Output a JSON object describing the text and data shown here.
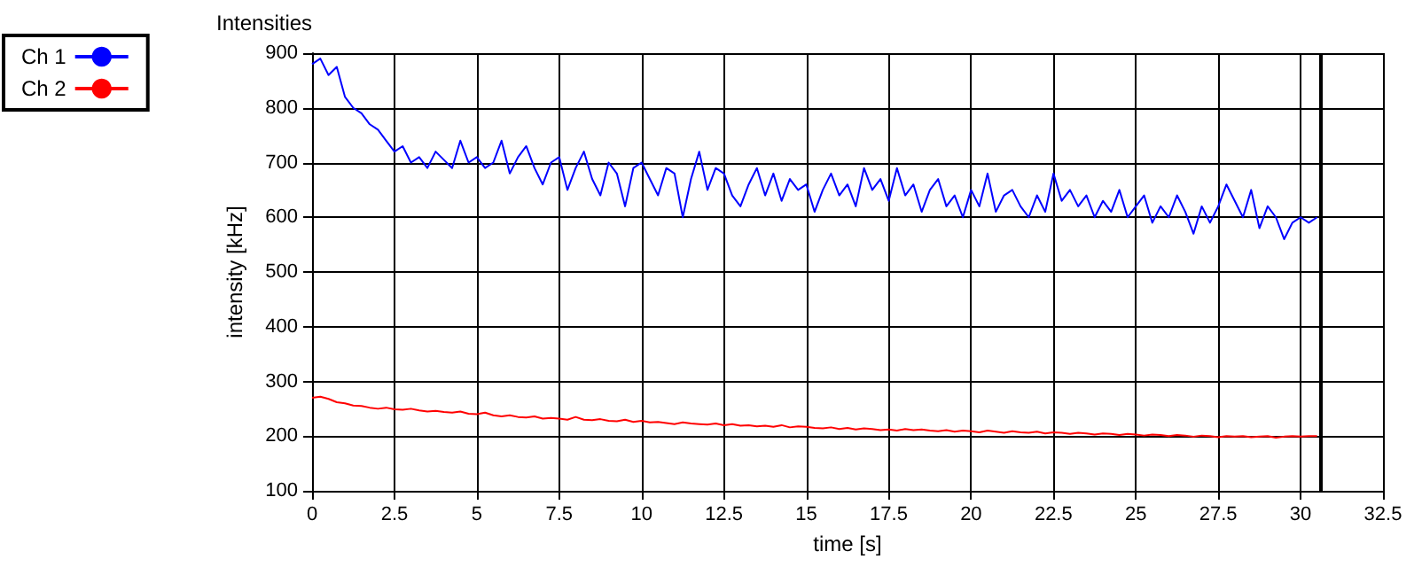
{
  "chart_data": {
    "type": "line",
    "title": "Intensities",
    "xlabel": "time [s]",
    "ylabel": "intensity [kHz]",
    "x": [
      0,
      0.25,
      0.5,
      0.75,
      1,
      1.25,
      1.5,
      1.75,
      2,
      2.25,
      2.5,
      2.75,
      3,
      3.25,
      3.5,
      3.75,
      4,
      4.25,
      4.5,
      4.75,
      5,
      5.25,
      5.5,
      5.75,
      6,
      6.25,
      6.5,
      6.75,
      7,
      7.25,
      7.5,
      7.75,
      8,
      8.25,
      8.5,
      8.75,
      9,
      9.25,
      9.5,
      9.75,
      10,
      10.25,
      10.5,
      10.75,
      11,
      11.25,
      11.5,
      11.75,
      12,
      12.25,
      12.5,
      12.75,
      13,
      13.25,
      13.5,
      13.75,
      14,
      14.25,
      14.5,
      14.75,
      15,
      15.25,
      15.5,
      15.75,
      16,
      16.25,
      16.5,
      16.75,
      17,
      17.25,
      17.5,
      17.75,
      18,
      18.25,
      18.5,
      18.75,
      19,
      19.25,
      19.5,
      19.75,
      20,
      20.25,
      20.5,
      20.75,
      21,
      21.25,
      21.5,
      21.75,
      22,
      22.25,
      22.5,
      22.75,
      23,
      23.25,
      23.5,
      23.75,
      24,
      24.25,
      24.5,
      24.75,
      25,
      25.25,
      25.5,
      25.75,
      26,
      26.25,
      26.5,
      26.75,
      27,
      27.25,
      27.5,
      27.75,
      28,
      28.25,
      28.5,
      28.75,
      29,
      29.25,
      29.5,
      29.75,
      30,
      30.25,
      30.5
    ],
    "series": [
      {
        "name": "Ch 1",
        "color": "#0000ff",
        "values": [
          880,
          890,
          860,
          875,
          820,
          800,
          790,
          770,
          760,
          740,
          720,
          730,
          700,
          710,
          690,
          720,
          705,
          690,
          740,
          700,
          710,
          690,
          700,
          740,
          680,
          710,
          730,
          690,
          660,
          700,
          710,
          650,
          690,
          720,
          670,
          640,
          700,
          680,
          620,
          690,
          700,
          670,
          640,
          690,
          680,
          600,
          670,
          720,
          650,
          690,
          680,
          640,
          620,
          660,
          690,
          640,
          680,
          630,
          670,
          650,
          660,
          610,
          650,
          680,
          640,
          660,
          620,
          690,
          650,
          670,
          630,
          690,
          640,
          660,
          610,
          650,
          670,
          620,
          640,
          600,
          650,
          620,
          680,
          610,
          640,
          650,
          620,
          600,
          640,
          610,
          680,
          630,
          650,
          620,
          640,
          600,
          630,
          610,
          650,
          600,
          620,
          640,
          590,
          620,
          600,
          640,
          610,
          570,
          620,
          590,
          620,
          660,
          630,
          600,
          650,
          580,
          620,
          600,
          560,
          590,
          600,
          590,
          600
        ]
      },
      {
        "name": "Ch 2",
        "color": "#ff0000",
        "values": [
          270,
          272,
          268,
          262,
          260,
          256,
          255,
          252,
          250,
          252,
          249,
          248,
          250,
          247,
          245,
          246,
          244,
          243,
          245,
          241,
          240,
          243,
          238,
          236,
          238,
          235,
          234,
          236,
          232,
          233,
          232,
          230,
          235,
          230,
          229,
          231,
          228,
          227,
          230,
          226,
          228,
          225,
          226,
          224,
          222,
          225,
          223,
          222,
          221,
          223,
          220,
          222,
          219,
          220,
          218,
          219,
          217,
          220,
          216,
          218,
          217,
          215,
          214,
          216,
          213,
          215,
          212,
          214,
          213,
          211,
          212,
          210,
          213,
          211,
          212,
          210,
          209,
          211,
          208,
          210,
          209,
          207,
          210,
          208,
          206,
          209,
          207,
          206,
          208,
          205,
          207,
          206,
          204,
          206,
          205,
          203,
          205,
          204,
          202,
          204,
          203,
          201,
          203,
          202,
          200,
          202,
          201,
          199,
          201,
          200,
          198,
          200,
          199,
          200,
          198,
          199,
          200,
          197,
          199,
          200,
          199,
          200,
          200
        ]
      }
    ],
    "xlim": [
      0,
      32.5
    ],
    "xticks": [
      0,
      2.5,
      5,
      7.5,
      10,
      12.5,
      15,
      17.5,
      20,
      22.5,
      25,
      27.5,
      30,
      32.5
    ],
    "ylim": [
      100,
      900
    ],
    "yticks": [
      100,
      200,
      300,
      400,
      500,
      600,
      700,
      800,
      900
    ],
    "ref_lines": [
      {
        "axis": "x",
        "value": 30.6,
        "color": "#000000"
      }
    ],
    "grid": true,
    "legend": "top left",
    "marker": "none",
    "line_style": "solid"
  }
}
